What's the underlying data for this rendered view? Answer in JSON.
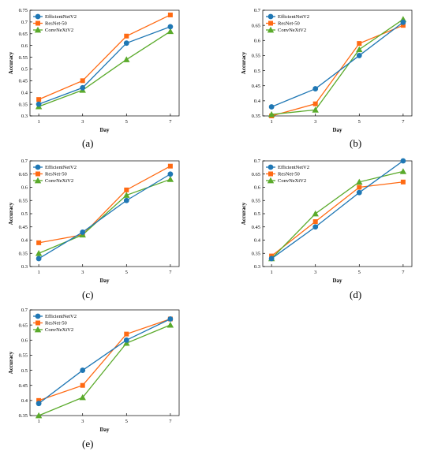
{
  "colors": {
    "EfficientNetV2": "#1f77b4",
    "ResNet-50": "#ff6a13",
    "ConvNeXtV2": "#5aaa2b"
  },
  "chart_data": [
    {
      "panel": "(a)",
      "type": "line",
      "xlabel": "Day",
      "ylabel": "Accuracy",
      "x": [
        1,
        3,
        5,
        7
      ],
      "xticks": [
        "1",
        "3",
        "5",
        "7"
      ],
      "ylim": [
        0.3,
        0.75
      ],
      "yticks": [
        "0.3",
        "0.35",
        "0.4",
        "0.45",
        "0.5",
        "0.55",
        "0.6",
        "0.65",
        "0.7",
        "0.75"
      ],
      "series": [
        {
          "name": "EfficientNetV2",
          "marker": "circle",
          "values": [
            0.35,
            0.42,
            0.61,
            0.68
          ]
        },
        {
          "name": "ResNet-50",
          "marker": "square",
          "values": [
            0.37,
            0.45,
            0.64,
            0.73
          ]
        },
        {
          "name": "ConvNeXtV2",
          "marker": "triangle",
          "values": [
            0.34,
            0.41,
            0.54,
            0.66
          ]
        }
      ]
    },
    {
      "panel": "(b)",
      "type": "line",
      "xlabel": "Day",
      "ylabel": "Accuracy",
      "x": [
        1,
        3,
        5,
        7
      ],
      "xticks": [
        "1",
        "3",
        "5",
        "7"
      ],
      "ylim": [
        0.35,
        0.7
      ],
      "yticks": [
        "0.35",
        "0.4",
        "0.45",
        "0.5",
        "0.55",
        "0.6",
        "0.65",
        "0.7"
      ],
      "series": [
        {
          "name": "EfficientNetV2",
          "marker": "circle",
          "values": [
            0.38,
            0.44,
            0.55,
            0.66
          ]
        },
        {
          "name": "ResNet-50",
          "marker": "square",
          "values": [
            0.35,
            0.39,
            0.59,
            0.65
          ]
        },
        {
          "name": "ConvNeXtV2",
          "marker": "triangle",
          "values": [
            0.355,
            0.37,
            0.57,
            0.67
          ]
        }
      ]
    },
    {
      "panel": "(c)",
      "type": "line",
      "xlabel": "Day",
      "ylabel": "Accuracy",
      "x": [
        1,
        3,
        5,
        7
      ],
      "xticks": [
        "1",
        "3",
        "5",
        "7"
      ],
      "ylim": [
        0.3,
        0.7
      ],
      "yticks": [
        "0.3",
        "0.35",
        "0.4",
        "0.45",
        "0.5",
        "0.55",
        "0.6",
        "0.65",
        "0.7"
      ],
      "series": [
        {
          "name": "EfficientNetV2",
          "marker": "circle",
          "values": [
            0.33,
            0.43,
            0.55,
            0.65
          ]
        },
        {
          "name": "ResNet-50",
          "marker": "square",
          "values": [
            0.39,
            0.42,
            0.59,
            0.68
          ]
        },
        {
          "name": "ConvNeXtV2",
          "marker": "triangle",
          "values": [
            0.35,
            0.42,
            0.57,
            0.63
          ]
        }
      ]
    },
    {
      "panel": "(d)",
      "type": "line",
      "xlabel": "Day",
      "ylabel": "Accuracy",
      "x": [
        1,
        3,
        5,
        7
      ],
      "xticks": [
        "1",
        "3",
        "5",
        "7"
      ],
      "ylim": [
        0.3,
        0.7
      ],
      "yticks": [
        "0.3",
        "0.35",
        "0.4",
        "0.45",
        "0.5",
        "0.55",
        "0.6",
        "0.65",
        "0.7"
      ],
      "series": [
        {
          "name": "EfficientNetV2",
          "marker": "circle",
          "values": [
            0.33,
            0.45,
            0.58,
            0.7
          ]
        },
        {
          "name": "ResNet-50",
          "marker": "square",
          "values": [
            0.34,
            0.47,
            0.6,
            0.62
          ]
        },
        {
          "name": "ConvNeXtV2",
          "marker": "triangle",
          "values": [
            0.33,
            0.5,
            0.62,
            0.66
          ]
        }
      ]
    },
    {
      "panel": "(e)",
      "type": "line",
      "xlabel": "Day",
      "ylabel": "Accuracy",
      "x": [
        1,
        3,
        5,
        7
      ],
      "xticks": [
        "1",
        "3",
        "5",
        "7"
      ],
      "ylim": [
        0.35,
        0.7
      ],
      "yticks": [
        "0.35",
        "0.4",
        "0.45",
        "0.5",
        "0.55",
        "0.6",
        "0.65",
        "0.7"
      ],
      "series": [
        {
          "name": "EfficientNetV2",
          "marker": "circle",
          "values": [
            0.39,
            0.5,
            0.6,
            0.67
          ]
        },
        {
          "name": "ResNet-50",
          "marker": "square",
          "values": [
            0.4,
            0.45,
            0.62,
            0.67
          ]
        },
        {
          "name": "ConvNeXtV2",
          "marker": "triangle",
          "values": [
            0.35,
            0.41,
            0.59,
            0.65
          ]
        }
      ]
    }
  ]
}
